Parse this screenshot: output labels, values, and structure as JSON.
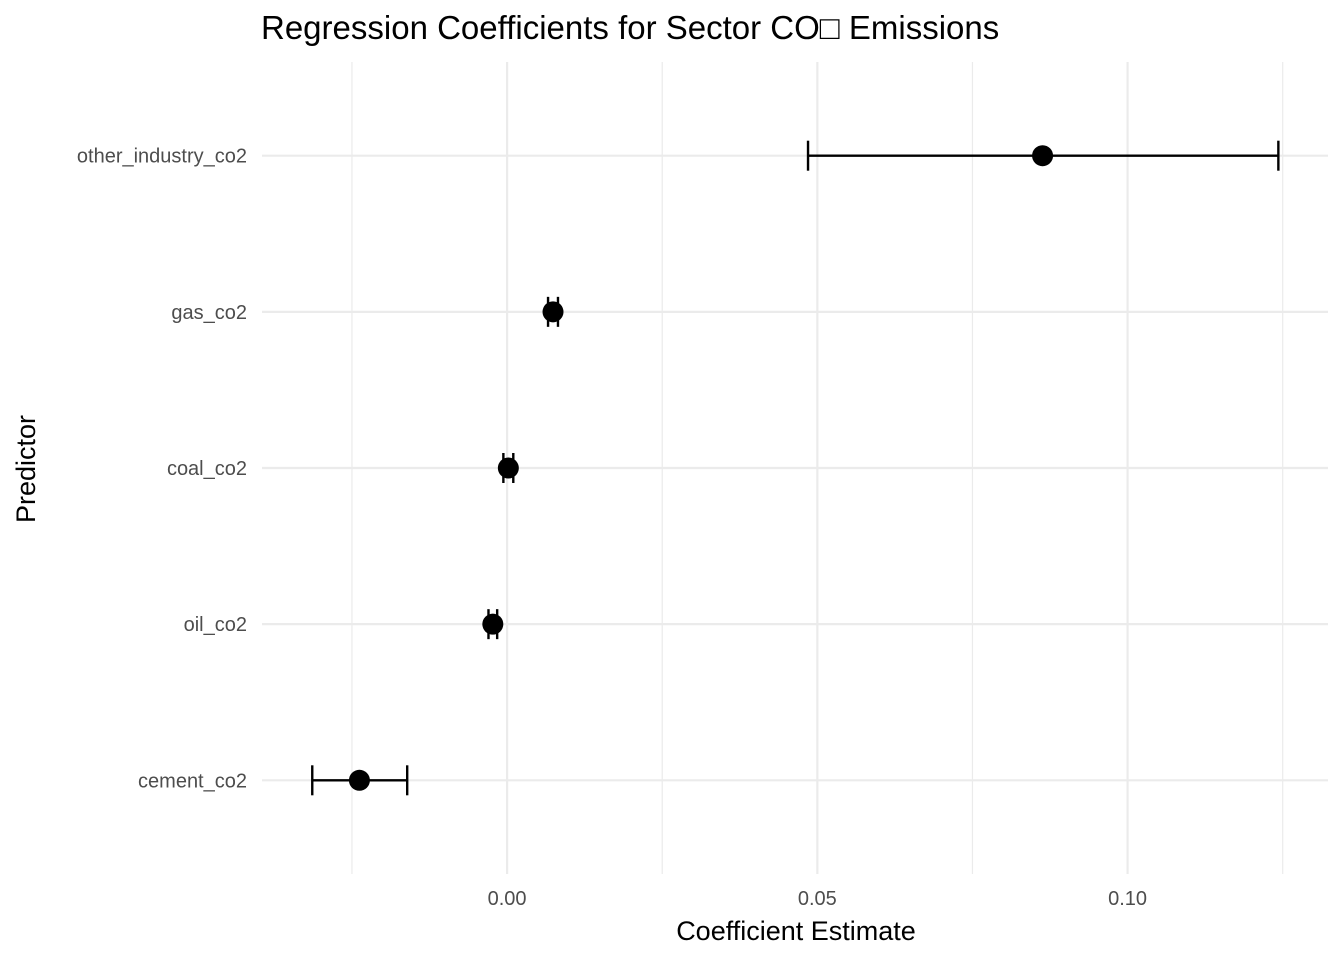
{
  "chart_data": {
    "type": "scatter",
    "title": "Regression Coefficients for Sector CO□ Emissions",
    "xlabel": "Coefficient Estimate",
    "ylabel": "Predictor",
    "xlim": [
      -0.0395,
      0.1323
    ],
    "x_ticks": [
      0.0,
      0.05,
      0.1
    ],
    "x_tick_labels": [
      "0.00",
      "0.05",
      "0.10"
    ],
    "x_minor_ticks": [
      -0.025,
      0.025,
      0.075,
      0.125
    ],
    "grid": true,
    "legend": "none",
    "categories": [
      "cement_co2",
      "oil_co2",
      "coal_co2",
      "gas_co2",
      "other_industry_co2"
    ],
    "estimates": [
      -0.0238,
      -0.0023,
      0.0002,
      0.0074,
      0.0863
    ],
    "ci_lower": [
      -0.0314,
      -0.003,
      -0.0006,
      0.0066,
      0.0485
    ],
    "ci_upper": [
      -0.0161,
      -0.0016,
      0.001,
      0.0082,
      0.1243
    ],
    "colors": {
      "point": "#000000",
      "grid": "#ebebeb",
      "tick_text": "#4d4d4d"
    }
  }
}
